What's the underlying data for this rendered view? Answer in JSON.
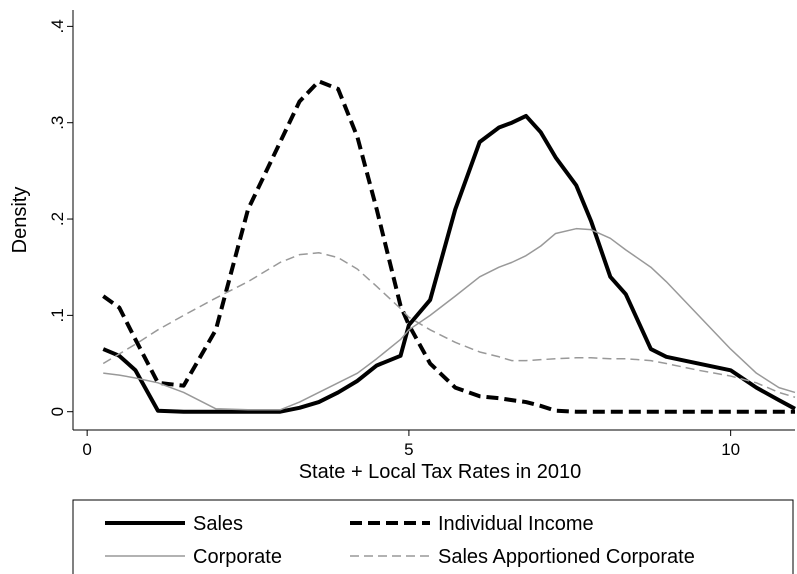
{
  "chart_data": {
    "type": "line",
    "xlabel": "State + Local Tax Rates in 2010",
    "ylabel": "Density",
    "x": [
      0.25,
      0.5,
      0.75,
      1.1,
      1.5,
      2,
      2.5,
      3,
      3.3,
      3.6,
      3.9,
      4.2,
      4.5,
      4.87,
      5,
      5.33,
      5.72,
      6.1,
      6.4,
      6.6,
      6.82,
      7.05,
      7.28,
      7.6,
      7.83,
      8.13,
      8.37,
      8.76,
      9,
      9.5,
      10,
      10.4,
      10.75,
      11
    ],
    "series": [
      {
        "name": "Sales",
        "color": "#000000",
        "line_width": 4,
        "line_style": "solid",
        "values": [
          0.065,
          0.058,
          0.043,
          0.001,
          0,
          0,
          0,
          0,
          0.004,
          0.01,
          0.02,
          0.032,
          0.048,
          0.058,
          0.09,
          0.116,
          0.21,
          0.28,
          0.295,
          0.3,
          0.307,
          0.29,
          0.264,
          0.235,
          0.198,
          0.14,
          0.122,
          0.065,
          0.057,
          0.05,
          0.043,
          0.025,
          0.012,
          0.003
        ]
      },
      {
        "name": "Individual Income",
        "color": "#000000",
        "line_width": 4,
        "line_style": "dashed",
        "values": [
          0.12,
          0.108,
          0.075,
          0.03,
          0.027,
          0.085,
          0.21,
          0.28,
          0.322,
          0.343,
          0.335,
          0.285,
          0.21,
          0.11,
          0.09,
          0.05,
          0.025,
          0.016,
          0.014,
          0.012,
          0.01,
          0.006,
          0.001,
          0,
          0,
          0,
          0,
          0,
          0,
          0,
          0,
          0,
          0,
          0
        ]
      },
      {
        "name": "Corporate",
        "color": "#999999",
        "line_width": 1.5,
        "line_style": "solid",
        "values": [
          0.04,
          0.038,
          0.035,
          0.03,
          0.02,
          0.003,
          0.002,
          0.002,
          0.01,
          0.02,
          0.03,
          0.04,
          0.055,
          0.075,
          0.085,
          0.1,
          0.12,
          0.14,
          0.15,
          0.155,
          0.162,
          0.172,
          0.185,
          0.19,
          0.189,
          0.18,
          0.168,
          0.15,
          0.135,
          0.1,
          0.065,
          0.04,
          0.025,
          0.02
        ]
      },
      {
        "name": "Sales Apportioned Corporate",
        "color": "#999999",
        "line_width": 1.5,
        "line_style": "dashed",
        "values": [
          0.05,
          0.06,
          0.07,
          0.085,
          0.1,
          0.118,
          0.135,
          0.155,
          0.163,
          0.165,
          0.16,
          0.148,
          0.13,
          0.107,
          0.098,
          0.085,
          0.072,
          0.062,
          0.057,
          0.053,
          0.053,
          0.054,
          0.055,
          0.056,
          0.056,
          0.055,
          0.055,
          0.053,
          0.05,
          0.043,
          0.037,
          0.03,
          0.02,
          0.015
        ]
      }
    ],
    "xlim": [
      -0.22,
      11.0
    ],
    "xticks": [
      0,
      5,
      10
    ],
    "ylim": [
      -0.019,
      0.417
    ],
    "yticks": [
      0,
      {
        "value": 0.1,
        "label": ".1"
      },
      {
        "value": 0.2,
        "label": ".2"
      },
      {
        "value": 0.3,
        "label": ".3"
      },
      {
        "value": 0.4,
        "label": ".4"
      }
    ],
    "legend": "bottom"
  }
}
